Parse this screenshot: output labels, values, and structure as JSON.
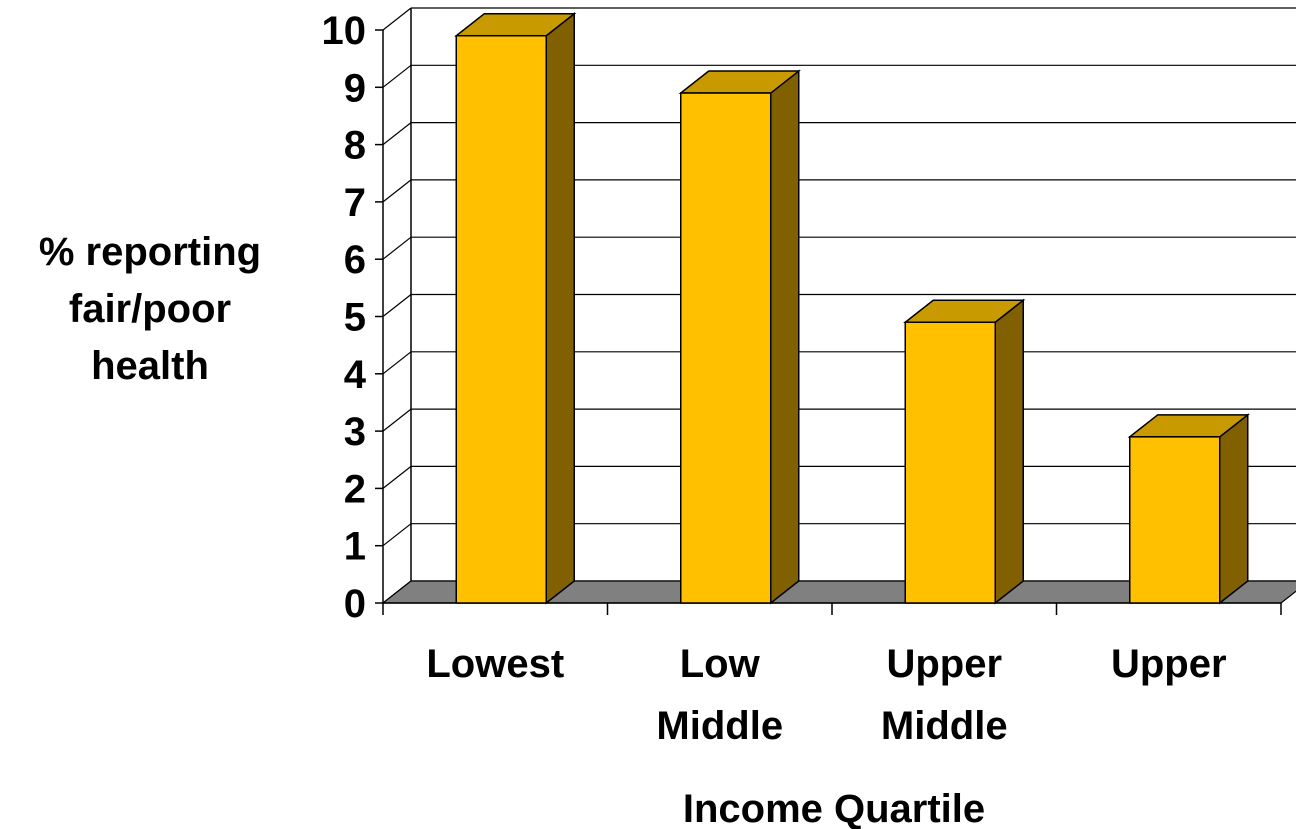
{
  "chart_data": {
    "type": "bar",
    "style": "3d",
    "categories": [
      [
        "Lowest"
      ],
      [
        "Low",
        "Middle"
      ],
      [
        "Upper",
        "Middle"
      ],
      [
        "Upper"
      ]
    ],
    "values": [
      9.9,
      8.9,
      4.9,
      2.9
    ],
    "ylabel": [
      "% reporting",
      "fair/poor",
      "health"
    ],
    "xlabel": "Income Quartile",
    "ylim": [
      0,
      10
    ],
    "yticks": [
      "0",
      "1",
      "2",
      "3",
      "4",
      "5",
      "6",
      "7",
      "8",
      "9",
      "10"
    ],
    "grid": true,
    "legend": "none"
  },
  "colors": {
    "bar_front": "#FFC000",
    "bar_top": "#C99A00",
    "bar_side": "#806000",
    "floor": "#808080",
    "grid": "#000000"
  }
}
